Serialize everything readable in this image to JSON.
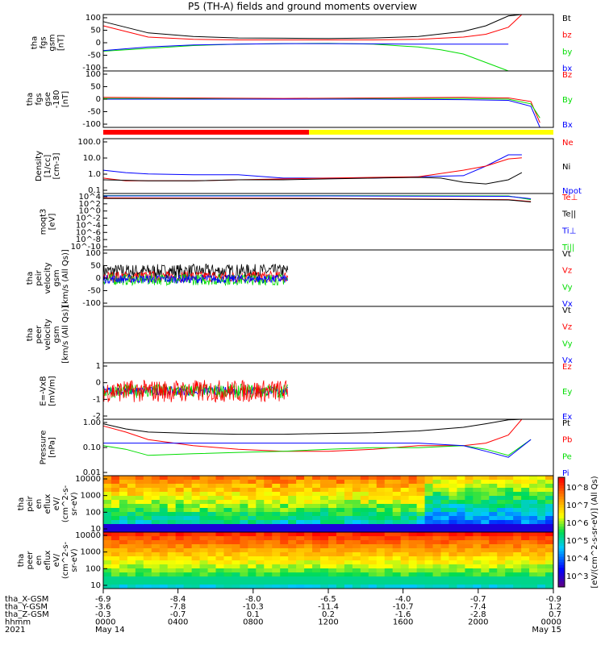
{
  "title": "P5 (TH-A) fields and ground moments overview",
  "colors": {
    "black": "#000000",
    "red": "#ff0000",
    "green": "#00dd00",
    "blue": "#0000ff",
    "yellow": "#ffff00"
  },
  "chart_data": [
    {
      "type": "line",
      "ylabel": [
        "tha",
        "fgs",
        "gsm",
        "[nT]"
      ],
      "ylim": [
        -100,
        100
      ],
      "yticks": [
        "100",
        "50",
        "0",
        "-50",
        "-100"
      ],
      "legend": [
        "Bt",
        "bz",
        "by",
        "bx"
      ],
      "legend_colors": [
        "#000000",
        "#ff0000",
        "#00dd00",
        "#0000ff"
      ],
      "series": [
        {
          "name": "Bt",
          "color": "#000000",
          "x": [
            0,
            0.1,
            0.2,
            0.3,
            0.4,
            0.5,
            0.6,
            0.7,
            0.8,
            0.85,
            0.9,
            0.93
          ],
          "y": [
            75,
            35,
            22,
            17,
            16,
            15,
            17,
            22,
            40,
            60,
            95,
            100
          ]
        },
        {
          "name": "bz",
          "color": "#ff0000",
          "x": [
            0,
            0.1,
            0.2,
            0.3,
            0.4,
            0.5,
            0.6,
            0.7,
            0.8,
            0.85,
            0.9,
            0.93
          ],
          "y": [
            60,
            20,
            12,
            10,
            10,
            10,
            10,
            12,
            20,
            30,
            55,
            100
          ]
        },
        {
          "name": "by",
          "color": "#00dd00",
          "x": [
            0,
            0.1,
            0.2,
            0.3,
            0.4,
            0.5,
            0.6,
            0.7,
            0.75,
            0.8,
            0.85,
            0.9
          ],
          "y": [
            -30,
            -20,
            -10,
            -5,
            -3,
            -2,
            -5,
            -15,
            -25,
            -40,
            -70,
            -100
          ]
        },
        {
          "name": "bx",
          "color": "#0000ff",
          "x": [
            0,
            0.1,
            0.2,
            0.3,
            0.4,
            0.5,
            0.6,
            0.7,
            0.8,
            0.9
          ],
          "y": [
            -28,
            -15,
            -8,
            -5,
            -3,
            -3,
            -4,
            -5,
            -5,
            -5
          ]
        }
      ]
    },
    {
      "type": "line",
      "ylabel": [
        "tha",
        "fgs",
        "gse",
        "-180",
        "[nT]"
      ],
      "ylim": [
        -120,
        120
      ],
      "yticks": [
        "100",
        "50",
        "0",
        "-50",
        "-100"
      ],
      "legend": [
        "Bz",
        "By",
        "Bx"
      ],
      "legend_colors": [
        "#ff0000",
        "#00dd00",
        "#0000ff"
      ],
      "series": [
        {
          "name": "Bz",
          "color": "#ff0000",
          "x": [
            0,
            0.2,
            0.4,
            0.6,
            0.8,
            0.9,
            0.95,
            0.97
          ],
          "y": [
            8,
            5,
            3,
            5,
            8,
            5,
            -10,
            -100
          ]
        },
        {
          "name": "By",
          "color": "#00dd00",
          "x": [
            0,
            0.2,
            0.4,
            0.6,
            0.8,
            0.9,
            0.95,
            0.97
          ],
          "y": [
            3,
            2,
            0,
            2,
            3,
            0,
            -20,
            -80
          ]
        },
        {
          "name": "Bx",
          "color": "#0000ff",
          "x": [
            0,
            0.2,
            0.4,
            0.6,
            0.8,
            0.9,
            0.95,
            0.97
          ],
          "y": [
            0,
            0,
            0,
            0,
            -2,
            -5,
            -30,
            -120
          ]
        }
      ]
    },
    {
      "type": "line",
      "ylabel": [
        "Density",
        "[1/cc]",
        "[cm-3]"
      ],
      "ylim": [
        0.03,
        300
      ],
      "log": true,
      "yticks": [
        "100.0",
        "10.0",
        "1.0",
        "0.1"
      ],
      "legend": [
        "Ne",
        "Ni",
        "Npot"
      ],
      "legend_colors": [
        "#ff0000",
        "#000000",
        "#0000ff"
      ],
      "series": [
        {
          "name": "Npot",
          "color": "#0000ff",
          "x": [
            0,
            0.05,
            0.1,
            0.2,
            0.3,
            0.4,
            0.5,
            0.6,
            0.7,
            0.8,
            0.85,
            0.9,
            0.93
          ],
          "y": [
            1.5,
            1.0,
            0.8,
            0.7,
            0.7,
            0.4,
            0.4,
            0.4,
            0.5,
            0.6,
            3,
            20,
            20
          ]
        },
        {
          "name": "Ne",
          "color": "#ff0000",
          "x": [
            0,
            0.05,
            0.1,
            0.2,
            0.3,
            0.4,
            0.5,
            0.6,
            0.7,
            0.8,
            0.85,
            0.9,
            0.93
          ],
          "y": [
            0.4,
            0.25,
            0.25,
            0.25,
            0.3,
            0.35,
            0.4,
            0.45,
            0.5,
            1.5,
            3,
            10,
            12
          ]
        },
        {
          "name": "Ni",
          "color": "#000000",
          "x": [
            0,
            0.1,
            0.2,
            0.3,
            0.4,
            0.5,
            0.6,
            0.7,
            0.75,
            0.8,
            0.85,
            0.9,
            0.93
          ],
          "y": [
            0.3,
            0.25,
            0.25,
            0.3,
            0.3,
            0.35,
            0.4,
            0.45,
            0.4,
            0.2,
            0.15,
            0.3,
            1
          ]
        }
      ]
    },
    {
      "type": "line",
      "ylabel": [
        "moqt3",
        "[eV]"
      ],
      "ylim": [
        1e-10,
        10000
      ],
      "log": true,
      "yticks": [
        "10^4",
        "10^2",
        "10^0",
        "10^-2",
        "10^-4",
        "10^-6",
        "10^-8",
        "10^-10"
      ],
      "legend": [
        "Te⊥",
        "Te||",
        "Ti⊥",
        "Ti||"
      ],
      "legend_colors": [
        "#ff0000",
        "#000000",
        "#0000ff",
        "#00dd00"
      ],
      "series": [
        {
          "name": "Ti||",
          "color": "#00dd00",
          "x": [
            0,
            0.5,
            0.9,
            0.95
          ],
          "y": [
            3000,
            3000,
            2500,
            300
          ]
        },
        {
          "name": "Ti⊥",
          "color": "#0000ff",
          "x": [
            0,
            0.5,
            0.9,
            0.95
          ],
          "y": [
            2500,
            2500,
            2000,
            500
          ]
        },
        {
          "name": "Te⊥",
          "color": "#ff0000",
          "x": [
            0,
            0.5,
            0.9,
            0.95
          ],
          "y": [
            800,
            600,
            300,
            100
          ]
        },
        {
          "name": "Te||",
          "color": "#000000",
          "x": [
            0,
            0.5,
            0.9,
            0.95
          ],
          "y": [
            600,
            500,
            250,
            80
          ]
        }
      ]
    },
    {
      "type": "line",
      "ylabel": [
        "tha",
        "peir",
        "velocity",
        "gsm",
        "[km/s (All Qs)]"
      ],
      "ylim": [
        -100,
        100
      ],
      "yticks": [
        "100",
        "50",
        "0",
        "-50",
        "-100"
      ],
      "legend": [
        "Vt",
        "Vz",
        "Vy",
        "Vx"
      ],
      "legend_colors": [
        "#000000",
        "#ff0000",
        "#00dd00",
        "#0000ff"
      ],
      "x_extent": 0.41,
      "noise": [
        {
          "name": "Vt",
          "color": "#000000",
          "mean": 25,
          "amp": 25
        },
        {
          "name": "Vz",
          "color": "#ff0000",
          "mean": 5,
          "amp": 20
        },
        {
          "name": "Vy",
          "color": "#00dd00",
          "mean": -5,
          "amp": 20
        },
        {
          "name": "Vx",
          "color": "#0000ff",
          "mean": -3,
          "amp": 15
        }
      ]
    },
    {
      "type": "line",
      "ylabel": [
        "tha",
        "peer",
        "velocity",
        "gsm",
        "[km/s (All Qs)]"
      ],
      "ylim": [
        -100,
        100
      ],
      "yticks": [],
      "legend": [
        "Vt",
        "Vz",
        "Vy",
        "Vx"
      ],
      "legend_colors": [
        "#000000",
        "#ff0000",
        "#00dd00",
        "#0000ff"
      ],
      "series": []
    },
    {
      "type": "line",
      "ylabel": [
        "E=-VxB",
        "[mV/m]"
      ],
      "ylim": [
        -2,
        2
      ],
      "yticks": [
        "1",
        "0",
        "-1",
        "-2"
      ],
      "legend": [
        "Ez",
        "Ey",
        "Ex"
      ],
      "legend_colors": [
        "#ff0000",
        "#00dd00",
        "#0000ff"
      ],
      "x_extent": 0.41,
      "noise": [
        {
          "name": "Ex",
          "color": "#0000ff",
          "mean": 0,
          "amp": 0.3
        },
        {
          "name": "Ey",
          "color": "#00dd00",
          "mean": 0,
          "amp": 0.5
        },
        {
          "name": "Ez",
          "color": "#ff0000",
          "mean": 0,
          "amp": 0.8
        }
      ]
    },
    {
      "type": "line",
      "ylabel": [
        "Pressure",
        "[nPa]"
      ],
      "ylim": [
        0.005,
        3
      ],
      "log": true,
      "yticks": [
        "1.00",
        "0.10",
        "0.01"
      ],
      "legend": [
        "Pt",
        "Pb",
        "Pe",
        "Pi"
      ],
      "legend_colors": [
        "#000000",
        "#ff0000",
        "#00dd00",
        "#0000ff"
      ],
      "series": [
        {
          "name": "Pt",
          "color": "#000000",
          "x": [
            0,
            0.05,
            0.1,
            0.2,
            0.3,
            0.4,
            0.5,
            0.6,
            0.7,
            0.8,
            0.85,
            0.9,
            0.93
          ],
          "y": [
            1.8,
            1.0,
            0.7,
            0.6,
            0.55,
            0.55,
            0.6,
            0.65,
            0.8,
            1.2,
            1.8,
            2.8,
            3
          ]
        },
        {
          "name": "Pb",
          "color": "#ff0000",
          "x": [
            0,
            0.05,
            0.1,
            0.2,
            0.3,
            0.4,
            0.5,
            0.6,
            0.7,
            0.8,
            0.85,
            0.9,
            0.93
          ],
          "y": [
            1.4,
            0.7,
            0.3,
            0.15,
            0.1,
            0.08,
            0.08,
            0.1,
            0.15,
            0.15,
            0.2,
            0.5,
            3
          ]
        },
        {
          "name": "Pe",
          "color": "#00dd00",
          "x": [
            0,
            0.05,
            0.1,
            0.2,
            0.3,
            0.4,
            0.5,
            0.6,
            0.7,
            0.8,
            0.85,
            0.9,
            0.95
          ],
          "y": [
            0.15,
            0.1,
            0.05,
            0.06,
            0.07,
            0.08,
            0.1,
            0.12,
            0.12,
            0.15,
            0.1,
            0.05,
            0.3
          ]
        },
        {
          "name": "Pi",
          "color": "#0000ff",
          "x": [
            0,
            0.05,
            0.1,
            0.2,
            0.3,
            0.4,
            0.5,
            0.6,
            0.7,
            0.8,
            0.85,
            0.9,
            0.95
          ],
          "y": [
            0.2,
            0.2,
            0.2,
            0.2,
            0.2,
            0.2,
            0.2,
            0.2,
            0.2,
            0.15,
            0.08,
            0.04,
            0.3
          ]
        }
      ]
    },
    {
      "type": "heatmap",
      "ylabel": [
        "tha",
        "peir",
        "en",
        "eflux",
        "eV/",
        "(cm^2-s-",
        "sr-eV)"
      ],
      "ylim": [
        5,
        30000
      ],
      "log": true,
      "yticks": [
        "10000",
        "1000",
        "100",
        "10"
      ]
    },
    {
      "type": "heatmap",
      "ylabel": [
        "tha",
        "peer",
        "en",
        "eflux",
        "eV/",
        "(cm^2-s-",
        "sr-eV)"
      ],
      "ylim": [
        5,
        30000
      ],
      "log": true,
      "yticks": [
        "10000",
        "1000",
        "100",
        "10"
      ]
    }
  ],
  "colorbar": {
    "ticks": [
      "10^8",
      "10^7",
      "10^6",
      "10^5",
      "10^4",
      "10^3"
    ],
    "label": "[eV/(cm^2-s-sr-eV)] (All Qs)"
  },
  "xaxis": {
    "rows": [
      {
        "label": "tha_X-GSM",
        "values": [
          "-6.9",
          "-8.4",
          "-8.0",
          "-6.5",
          "-4.0",
          "-0.7",
          "-0.9"
        ]
      },
      {
        "label": "tha_Y-GSM",
        "values": [
          "-3.6",
          "-7.8",
          "-10.3",
          "-11.4",
          "-10.7",
          "-7.4",
          "1.2"
        ]
      },
      {
        "label": "tha_Z-GSM",
        "values": [
          "-0.3",
          "-0.7",
          "0.1",
          "0.2",
          "-1.6",
          "-2.8",
          "0.7"
        ]
      },
      {
        "label": "hhmm",
        "values": [
          "0000",
          "0400",
          "0800",
          "1200",
          "1600",
          "2000",
          "0000"
        ]
      },
      {
        "label": "2021",
        "values": [
          "May 14",
          "",
          "",
          "",
          "",
          "",
          "May 15"
        ]
      }
    ]
  }
}
